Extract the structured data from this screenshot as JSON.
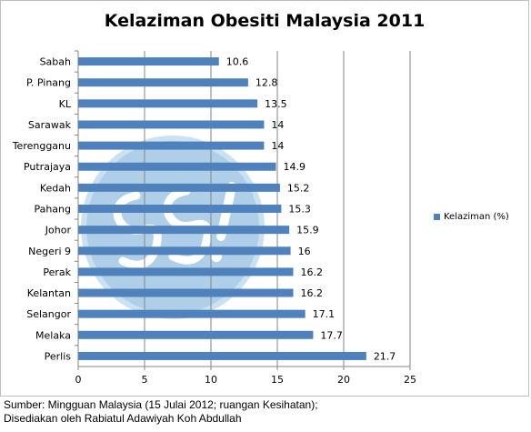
{
  "chart_data": {
    "type": "bar",
    "orientation": "horizontal",
    "title": "Kelaziman Obesiti Malaysia 2011",
    "categories": [
      "Sabah",
      "P. Pinang",
      "KL",
      "Sarawak",
      "Terengganu",
      "Putrajaya",
      "Kedah",
      "Pahang",
      "Johor",
      "Negeri 9",
      "Perak",
      "Kelantan",
      "Selangor",
      "Melaka",
      "Perlis"
    ],
    "series": [
      {
        "name": "Kelaziman (%)",
        "values": [
          10.6,
          12.8,
          13.5,
          14,
          14,
          14.9,
          15.2,
          15.3,
          15.9,
          16,
          16.2,
          16.2,
          17.1,
          17.7,
          21.7
        ]
      }
    ],
    "data_labels": [
      "10.6",
      "12.8",
      "13.5",
      "14",
      "14",
      "14.9",
      "15.2",
      "15.3",
      "15.9",
      "16",
      "16.2",
      "16.2",
      "17.1",
      "17.7",
      "21.7"
    ],
    "xlim": [
      0,
      25
    ],
    "xticks": [
      0,
      5,
      10,
      15,
      20,
      25
    ],
    "grid": true,
    "legend_position": "right",
    "bar_color": "#4f81bd"
  },
  "source": {
    "line1": "Sumber: Mingguan Malaysia (15 Julai 2012; ruangan Kesihatan);",
    "line2": "Disediakan oleh Rabiatul Adawiyah Koh Abdullah"
  }
}
